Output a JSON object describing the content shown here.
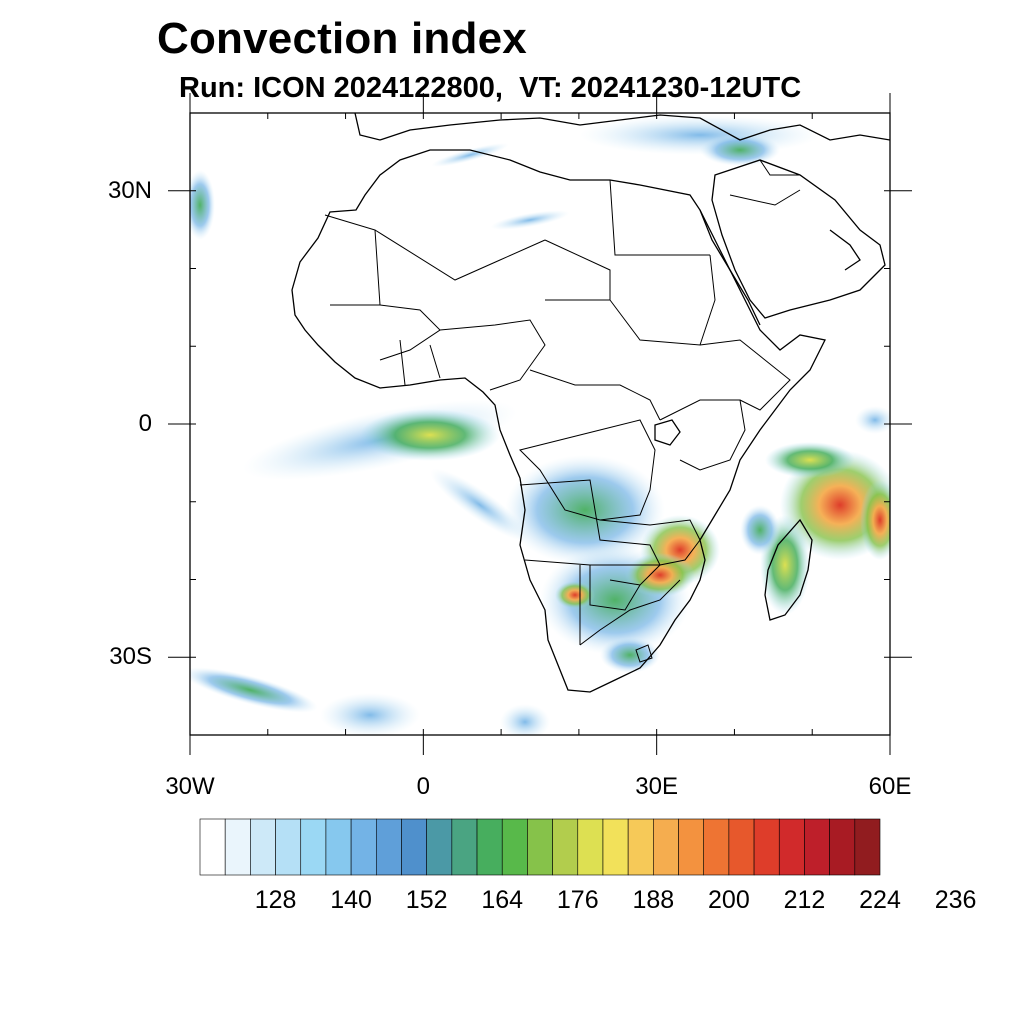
{
  "title": "Convection index",
  "subtitle": "Run: ICON 2024122800,  VT: 20241230-12UTC",
  "map": {
    "region": "Africa",
    "lon_range": [
      -30,
      60
    ],
    "lat_range": [
      -40,
      40
    ],
    "lat_ticks": [
      {
        "value": 30,
        "label": "30N"
      },
      {
        "value": 0,
        "label": "0"
      },
      {
        "value": -30,
        "label": "30S"
      }
    ],
    "lon_ticks": [
      {
        "value": -30,
        "label": "30W"
      },
      {
        "value": 0,
        "label": "0"
      },
      {
        "value": 30,
        "label": "30E"
      },
      {
        "value": 60,
        "label": "60E"
      }
    ]
  },
  "colorbar": {
    "colors": [
      "#ffffff",
      "#eaf5fc",
      "#cde9f8",
      "#b5e0f6",
      "#9bd8f4",
      "#86c8ee",
      "#73b3e6",
      "#5f9fd9",
      "#4f90cc",
      "#4b99a6",
      "#4aa482",
      "#47ae5e",
      "#58b94a",
      "#86c24a",
      "#b2cd4d",
      "#dde052",
      "#f2e15a",
      "#f6c958",
      "#f5ad4f",
      "#f3923f",
      "#ee7433",
      "#e7582c",
      "#de3d2a",
      "#d12a2b",
      "#be1f2a",
      "#a81b23",
      "#911c1f"
    ],
    "tick_labels": [
      "128",
      "140",
      "152",
      "164",
      "176",
      "188",
      "200",
      "212",
      "224",
      "236"
    ]
  }
}
